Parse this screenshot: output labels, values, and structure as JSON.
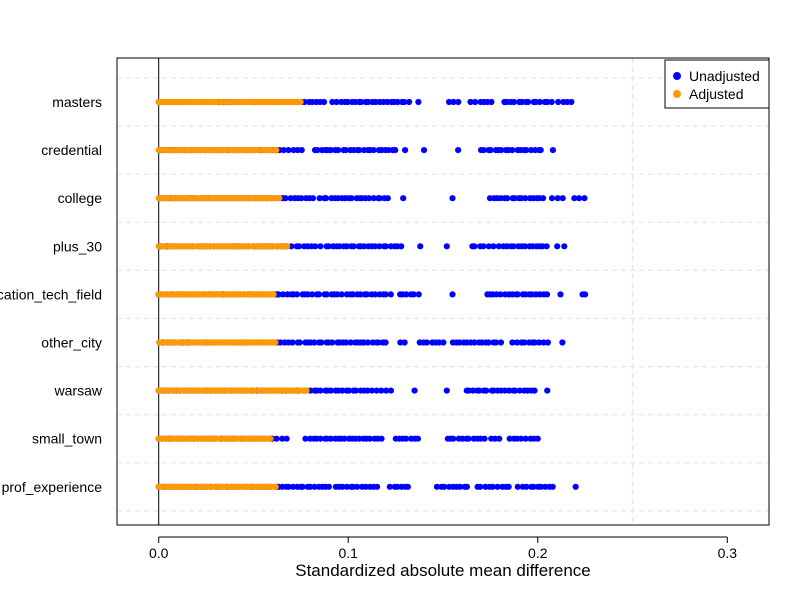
{
  "chart_data": {
    "type": "scatter",
    "title": "",
    "xlabel": "Standardized absolute mean difference",
    "ylabel": "",
    "xlim": [
      -0.022,
      0.322
    ],
    "xticks": [
      0.0,
      0.1,
      0.2,
      0.3
    ],
    "xtick_labels": [
      "0.0",
      "0.1",
      "0.2",
      "0.3"
    ],
    "reference_line_x": 0.0,
    "threshold_line_x": 0.25,
    "grid": "dashed horizontal between categories",
    "legend_position": "top-right",
    "categories": [
      "masters",
      "credential",
      "college",
      "plus_30",
      "education_tech_field",
      "other_city",
      "warsaw",
      "small_town",
      "prof_experience"
    ],
    "series": [
      {
        "name": "Unadjusted",
        "color": "#0000ff",
        "ranges": [
          {
            "category": "masters",
            "min": 0.0,
            "max": 0.218,
            "clusters": [
              [
                0.0,
                0.073
              ],
              [
                0.073,
                0.087
              ],
              [
                0.092,
                0.132
              ],
              [
                0.137,
                0.137
              ],
              [
                0.153,
                0.158
              ],
              [
                0.165,
                0.176
              ],
              [
                0.182,
                0.207
              ],
              [
                0.211,
                0.218
              ]
            ]
          },
          {
            "category": "credential",
            "min": 0.0,
            "max": 0.208,
            "clusters": [
              [
                0.0,
                0.062
              ],
              [
                0.062,
                0.075
              ],
              [
                0.082,
                0.125
              ],
              [
                0.13,
                0.13
              ],
              [
                0.14,
                0.14
              ],
              [
                0.158,
                0.158
              ],
              [
                0.17,
                0.202
              ],
              [
                0.208,
                0.208
              ]
            ]
          },
          {
            "category": "college",
            "min": 0.0,
            "max": 0.225,
            "clusters": [
              [
                0.0,
                0.065
              ],
              [
                0.065,
                0.082
              ],
              [
                0.085,
                0.121
              ],
              [
                0.129,
                0.129
              ],
              [
                0.155,
                0.155
              ],
              [
                0.175,
                0.203
              ],
              [
                0.207,
                0.213
              ],
              [
                0.219,
                0.225
              ]
            ]
          },
          {
            "category": "plus_30",
            "min": 0.0,
            "max": 0.214,
            "clusters": [
              [
                0.0,
                0.068
              ],
              [
                0.068,
                0.085
              ],
              [
                0.088,
                0.128
              ],
              [
                0.138,
                0.138
              ],
              [
                0.152,
                0.152
              ],
              [
                0.165,
                0.176
              ],
              [
                0.18,
                0.205
              ],
              [
                0.21,
                0.214
              ]
            ]
          },
          {
            "category": "education_tech_field",
            "min": 0.0,
            "max": 0.225,
            "clusters": [
              [
                0.0,
                0.062
              ],
              [
                0.062,
                0.085
              ],
              [
                0.087,
                0.122
              ],
              [
                0.127,
                0.137
              ],
              [
                0.155,
                0.155
              ],
              [
                0.173,
                0.205
              ],
              [
                0.212,
                0.212
              ],
              [
                0.224,
                0.225
              ]
            ]
          },
          {
            "category": "other_city",
            "min": 0.0,
            "max": 0.213,
            "clusters": [
              [
                0.0,
                0.062
              ],
              [
                0.062,
                0.073
              ],
              [
                0.075,
                0.12
              ],
              [
                0.127,
                0.13
              ],
              [
                0.138,
                0.15
              ],
              [
                0.155,
                0.18
              ],
              [
                0.187,
                0.205
              ],
              [
                0.213,
                0.213
              ]
            ]
          },
          {
            "category": "warsaw",
            "min": 0.0,
            "max": 0.205,
            "clusters": [
              [
                0.0,
                0.065
              ],
              [
                0.065,
                0.11
              ],
              [
                0.113,
                0.122
              ],
              [
                0.135,
                0.135
              ],
              [
                0.152,
                0.152
              ],
              [
                0.162,
                0.198
              ],
              [
                0.205,
                0.205
              ]
            ]
          },
          {
            "category": "small_town",
            "min": 0.0,
            "max": 0.2,
            "clusters": [
              [
                0.0,
                0.06
              ],
              [
                0.06,
                0.068
              ],
              [
                0.078,
                0.117
              ],
              [
                0.125,
                0.137
              ],
              [
                0.152,
                0.172
              ],
              [
                0.175,
                0.18
              ],
              [
                0.185,
                0.2
              ]
            ]
          },
          {
            "category": "prof_experience",
            "min": 0.0,
            "max": 0.22,
            "clusters": [
              [
                0.0,
                0.063
              ],
              [
                0.063,
                0.09
              ],
              [
                0.093,
                0.115
              ],
              [
                0.122,
                0.132
              ],
              [
                0.147,
                0.163
              ],
              [
                0.168,
                0.185
              ],
              [
                0.19,
                0.208
              ],
              [
                0.22,
                0.22
              ]
            ]
          }
        ]
      },
      {
        "name": "Adjusted",
        "color": "#ff9900",
        "ranges": [
          {
            "category": "masters",
            "min": 0.0,
            "max": 0.075
          },
          {
            "category": "credential",
            "min": 0.0,
            "max": 0.062
          },
          {
            "category": "college",
            "min": 0.0,
            "max": 0.064
          },
          {
            "category": "plus_30",
            "min": 0.0,
            "max": 0.068
          },
          {
            "category": "education_tech_field",
            "min": 0.0,
            "max": 0.061
          },
          {
            "category": "other_city",
            "min": 0.0,
            "max": 0.062
          },
          {
            "category": "warsaw",
            "min": 0.0,
            "max": 0.078
          },
          {
            "category": "small_town",
            "min": 0.0,
            "max": 0.059
          },
          {
            "category": "prof_experience",
            "min": 0.0,
            "max": 0.062
          }
        ]
      }
    ]
  }
}
